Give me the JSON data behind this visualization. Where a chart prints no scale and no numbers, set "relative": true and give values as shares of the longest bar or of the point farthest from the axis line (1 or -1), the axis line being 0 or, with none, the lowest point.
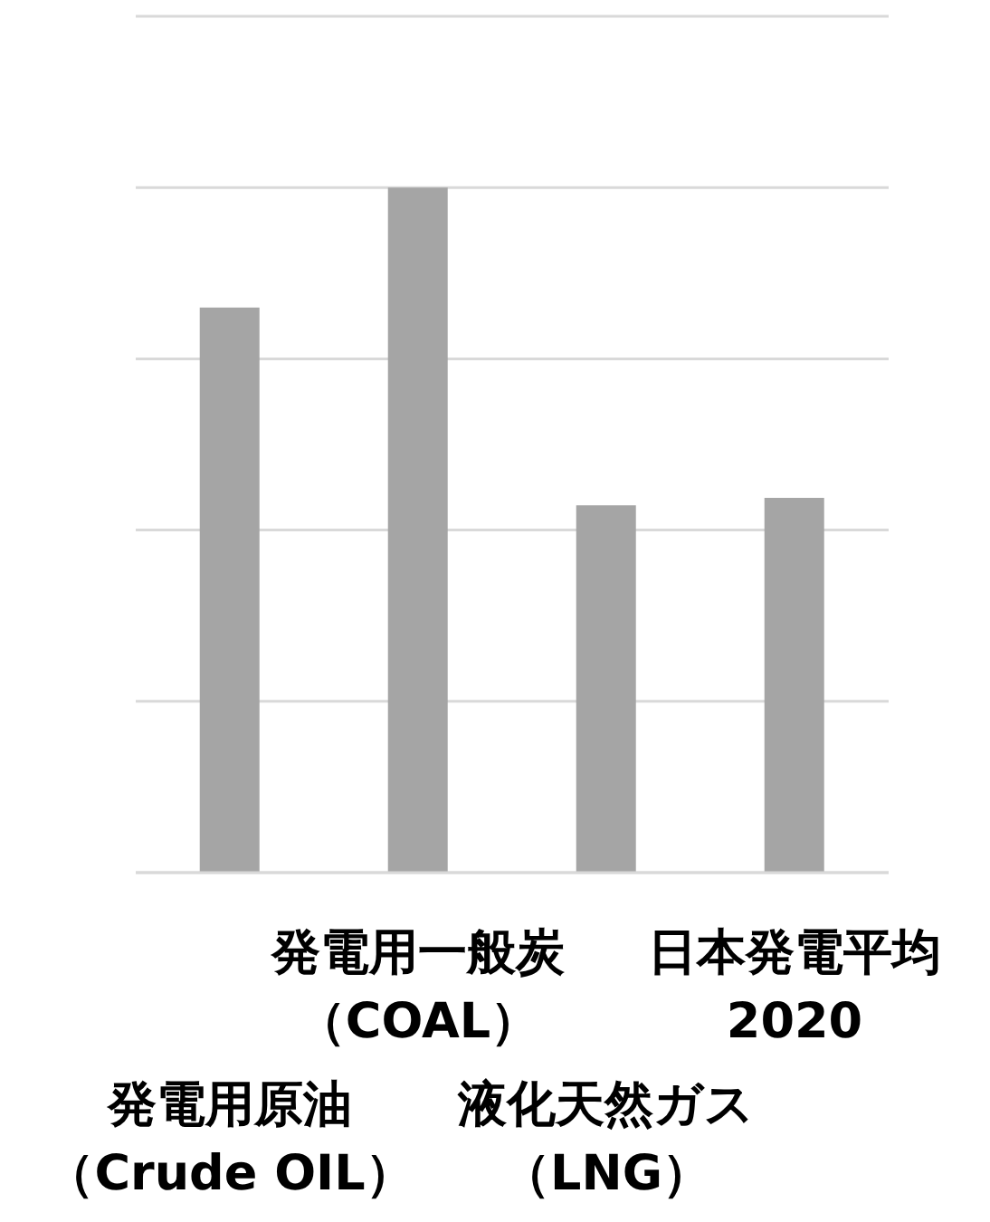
{
  "chart_data": {
    "type": "bar",
    "categories": [
      "発電用原油（Crude OIL）",
      "発電用一般炭（COAL）",
      "液化天然ガス（LNG）",
      "日本発電平均 2020"
    ],
    "values": [
      0.825,
      1,
      0.536,
      0.547
    ],
    "color": "#a5a5a5",
    "relative": true,
    "grid": "y"
  }
}
